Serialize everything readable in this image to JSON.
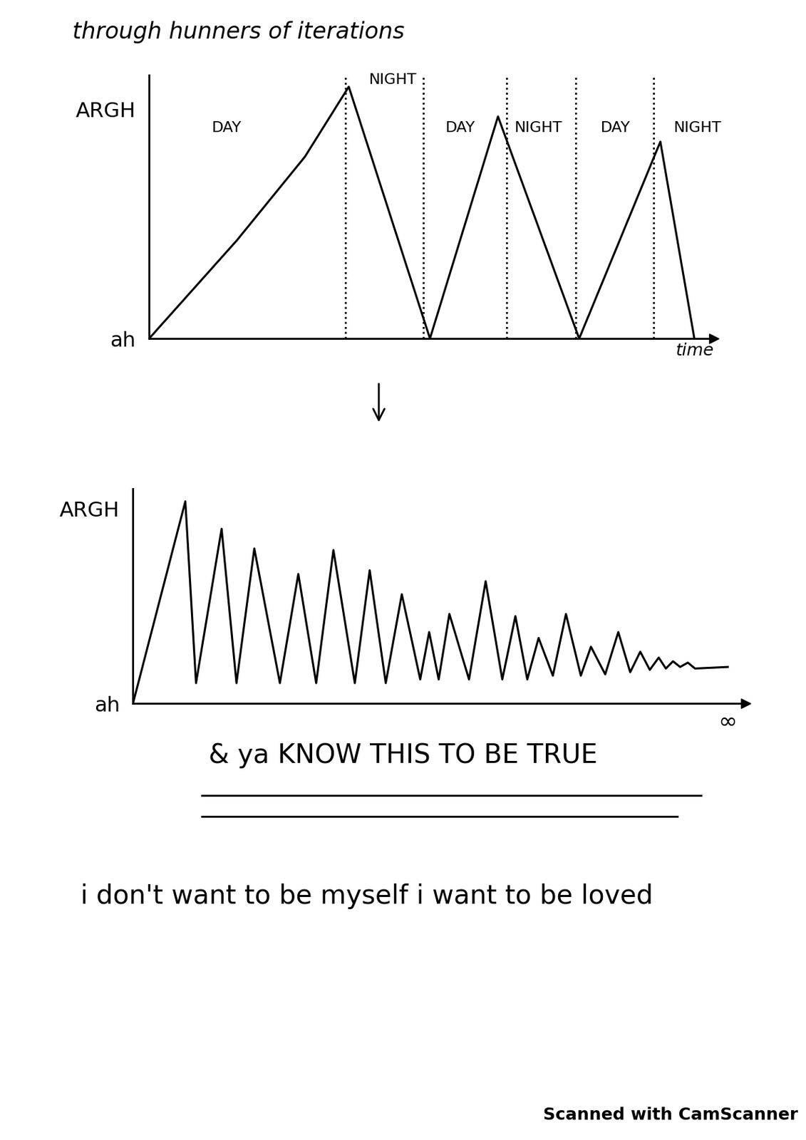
{
  "header": "through hunners of iterations",
  "chart_data": [
    {
      "type": "line",
      "color": "#000000",
      "x": [
        0,
        1.6,
        2.84,
        3.64,
        5.12,
        6.36,
        7.84,
        9.32,
        9.94
      ],
      "values": [
        0,
        4.29,
        7.94,
        11.0,
        0,
        9.7,
        0,
        8.6,
        0
      ],
      "xlim": [
        0,
        10.3
      ],
      "ylim": [
        0,
        11.5
      ],
      "xticks": [],
      "yticks": [
        {
          "value": 0,
          "label": "ah"
        },
        {
          "value": 10,
          "label": "ARGH"
        }
      ],
      "x_label": "time",
      "dividers": [
        3.58,
        5.0,
        6.52,
        7.78,
        9.2
      ],
      "annotations": [
        {
          "text": "DAY",
          "x": 1.42,
          "y": 8.9
        },
        {
          "text": "NIGHT",
          "x": 4.44,
          "y": 11.0
        },
        {
          "text": "DAY",
          "x": 5.68,
          "y": 8.9
        },
        {
          "text": "NIGHT",
          "x": 7.1,
          "y": 8.9
        },
        {
          "text": "DAY",
          "x": 8.5,
          "y": 8.9
        },
        {
          "text": "NIGHT",
          "x": 10.0,
          "y": 8.9
        }
      ]
    },
    {
      "type": "line",
      "color": "#000000",
      "x": [
        0,
        0.88,
        1.06,
        1.49,
        1.74,
        2.04,
        2.47,
        2.78,
        3.08,
        3.37,
        3.73,
        3.98,
        4.25,
        4.52,
        4.83,
        4.98,
        5.14,
        5.32,
        5.65,
        5.93,
        6.21,
        6.43,
        6.63,
        6.82,
        7.06,
        7.28,
        7.53,
        7.7,
        7.94,
        8.16,
        8.36,
        8.53,
        8.69,
        8.84,
        8.96,
        9.08,
        9.2,
        9.33,
        9.45,
        10.0
      ],
      "values": [
        0,
        10.37,
        1.04,
        8.96,
        1.04,
        7.95,
        1.04,
        6.64,
        1.04,
        7.87,
        1.04,
        6.83,
        1.04,
        5.6,
        1.23,
        3.66,
        1.23,
        4.59,
        1.23,
        6.27,
        1.23,
        4.48,
        1.23,
        3.36,
        1.42,
        4.59,
        1.42,
        2.91,
        1.49,
        3.66,
        1.6,
        2.65,
        1.72,
        2.35,
        1.79,
        2.16,
        1.87,
        2.09,
        1.79,
        1.87
      ],
      "xlim": [
        0,
        10.3
      ],
      "ylim": [
        0,
        11
      ],
      "xticks": [
        {
          "value": 10,
          "label": "∞"
        }
      ],
      "yticks": [
        {
          "value": 0,
          "label": "ah"
        },
        {
          "value": 10,
          "label": "ARGH"
        }
      ]
    }
  ],
  "caption": "& ya KNOW THIS TO BE TRUE",
  "statement": "i don't want to be myself i want to be loved",
  "footer": "Scanned with CamScanner"
}
